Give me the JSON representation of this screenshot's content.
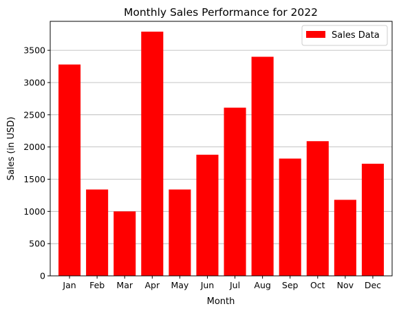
{
  "chart_data": {
    "type": "bar",
    "title": "Monthly Sales Performance for 2022",
    "xlabel": "Month",
    "ylabel": "Sales (in USD)",
    "categories": [
      "Jan",
      "Feb",
      "Mar",
      "Apr",
      "May",
      "Jun",
      "Jul",
      "Aug",
      "Sep",
      "Oct",
      "Nov",
      "Dec"
    ],
    "series": [
      {
        "name": "Sales Data",
        "values": [
          3280,
          1340,
          1000,
          3790,
          1340,
          1880,
          2610,
          3400,
          1820,
          2090,
          1180,
          1740
        ]
      }
    ],
    "ylim": [
      0,
      3950
    ],
    "yticks": [
      0,
      500,
      1000,
      1500,
      2000,
      2500,
      3000,
      3500
    ],
    "grid": "horizontal",
    "legend_position": "top-right",
    "bar_color": "#ff0000",
    "grid_color": "#b0b0b0"
  }
}
